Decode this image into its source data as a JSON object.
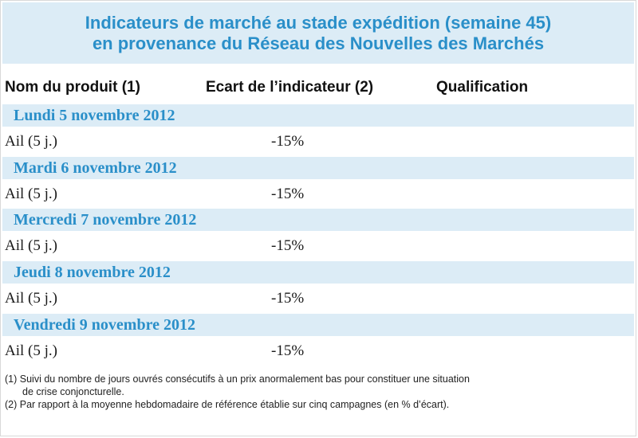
{
  "title": {
    "line1": "Indicateurs de marché au stade expédition (semaine 45)",
    "line2": "en provenance du Réseau des Nouvelles des Marchés"
  },
  "columns": {
    "product": "Nom du produit (1)",
    "indicator": "Ecart de l’indicateur (2)",
    "qualification": "Qualification"
  },
  "days": [
    {
      "label": "Lundi 5 novembre 2012",
      "product": "Ail (5 j.)",
      "value": "-15%",
      "qualification": ""
    },
    {
      "label": "Mardi 6 novembre 2012",
      "product": "Ail (5 j.)",
      "value": "-15%",
      "qualification": ""
    },
    {
      "label": "Mercredi 7 novembre 2012",
      "product": "Ail (5 j.)",
      "value": "-15%",
      "qualification": ""
    },
    {
      "label": "Jeudi 8 novembre 2012",
      "product": "Ail (5 j.)",
      "value": "-15%",
      "qualification": ""
    },
    {
      "label": "Vendredi 9 novembre 2012",
      "product": "Ail (5 j.)",
      "value": "-15%",
      "qualification": ""
    }
  ],
  "footnotes": {
    "note1_line1": "(1) Suivi du nombre de jours ouvrés consécutifs à un prix anormalement bas pour constituer une situation",
    "note1_line2": "de crise conjoncturelle.",
    "note2": "(2) Par rapport à la moyenne hebdomadaire de référence établie sur cinq campagnes (en % d’écart)."
  },
  "colors": {
    "accent": "#2a8fc9",
    "band": "#dcecf6"
  }
}
